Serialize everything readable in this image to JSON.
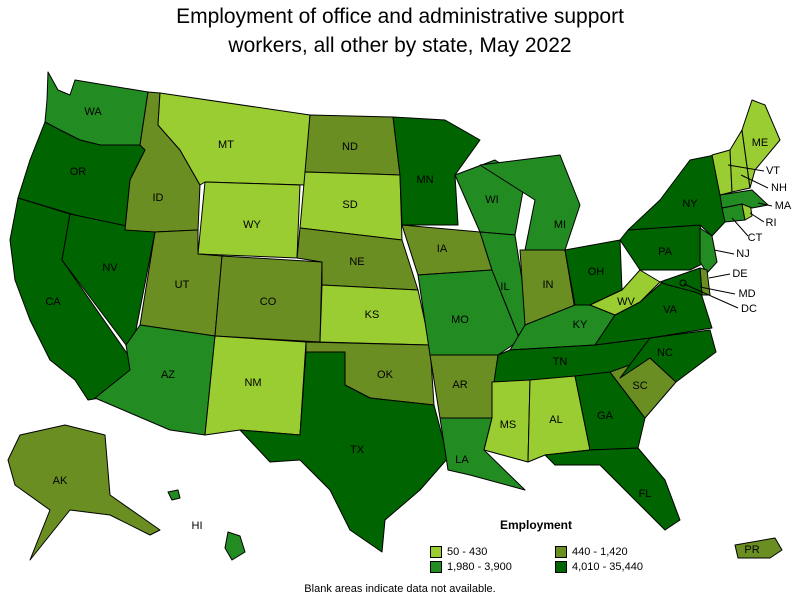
{
  "title_line1": "Employment of office and administrative support",
  "title_line2": "workers, all other by state, May 2022",
  "legend": {
    "title": "Employment",
    "items": [
      {
        "label": "50 - 430",
        "color": "#9acd32"
      },
      {
        "label": "440 - 1,420",
        "color": "#6b8e23"
      },
      {
        "label": "1,980 - 3,900",
        "color": "#228b22"
      },
      {
        "label": "4,010 - 35,440",
        "color": "#006400"
      }
    ]
  },
  "footnote": "Blank areas indicate data not available.",
  "states": {
    "WA": {
      "label": "WA",
      "bin": 2
    },
    "OR": {
      "label": "OR",
      "bin": 3
    },
    "CA": {
      "label": "CA",
      "bin": 3
    },
    "NV": {
      "label": "NV",
      "bin": 3
    },
    "ID": {
      "label": "ID",
      "bin": 1
    },
    "MT": {
      "label": "MT",
      "bin": 0
    },
    "WY": {
      "label": "WY",
      "bin": 0
    },
    "UT": {
      "label": "UT",
      "bin": 1
    },
    "AZ": {
      "label": "AZ",
      "bin": 2
    },
    "CO": {
      "label": "CO",
      "bin": 1
    },
    "NM": {
      "label": "NM",
      "bin": 0
    },
    "ND": {
      "label": "ND",
      "bin": 1
    },
    "SD": {
      "label": "SD",
      "bin": 0
    },
    "NE": {
      "label": "NE",
      "bin": 1
    },
    "KS": {
      "label": "KS",
      "bin": 0
    },
    "OK": {
      "label": "OK",
      "bin": 1
    },
    "TX": {
      "label": "TX",
      "bin": 3
    },
    "MN": {
      "label": "MN",
      "bin": 3
    },
    "IA": {
      "label": "IA",
      "bin": 1
    },
    "MO": {
      "label": "MO",
      "bin": 2
    },
    "AR": {
      "label": "AR",
      "bin": 1
    },
    "LA": {
      "label": "LA",
      "bin": 2
    },
    "WI": {
      "label": "WI",
      "bin": 2
    },
    "IL": {
      "label": "IL",
      "bin": 2
    },
    "MI": {
      "label": "MI",
      "bin": 2
    },
    "IN": {
      "label": "IN",
      "bin": 1
    },
    "OH": {
      "label": "OH",
      "bin": 3
    },
    "KY": {
      "label": "KY",
      "bin": 2
    },
    "TN": {
      "label": "TN",
      "bin": 3
    },
    "MS": {
      "label": "MS",
      "bin": 0
    },
    "AL": {
      "label": "AL",
      "bin": 0
    },
    "GA": {
      "label": "GA",
      "bin": 3
    },
    "FL": {
      "label": "FL",
      "bin": 3
    },
    "SC": {
      "label": "SC",
      "bin": 1
    },
    "NC": {
      "label": "NC",
      "bin": 3
    },
    "VA": {
      "label": "VA",
      "bin": 3
    },
    "WV": {
      "label": "WV",
      "bin": 0
    },
    "PA": {
      "label": "PA",
      "bin": 3
    },
    "NY": {
      "label": "NY",
      "bin": 3
    },
    "ME": {
      "label": "ME",
      "bin": 0
    },
    "VT": {
      "label": "VT",
      "bin": 0
    },
    "NH": {
      "label": "NH",
      "bin": 0
    },
    "MA": {
      "label": "MA",
      "bin": 2
    },
    "RI": {
      "label": "RI",
      "bin": 0
    },
    "CT": {
      "label": "CT",
      "bin": 2
    },
    "NJ": {
      "label": "NJ",
      "bin": 2
    },
    "DE": {
      "label": "DE",
      "bin": 1
    },
    "MD": {
      "label": "MD",
      "bin": 3
    },
    "DC": {
      "label": "DC",
      "bin": 3
    },
    "AK": {
      "label": "AK",
      "bin": 1
    },
    "HI": {
      "label": "HI",
      "bin": 2
    },
    "PR": {
      "label": "PR",
      "bin": 1
    }
  }
}
